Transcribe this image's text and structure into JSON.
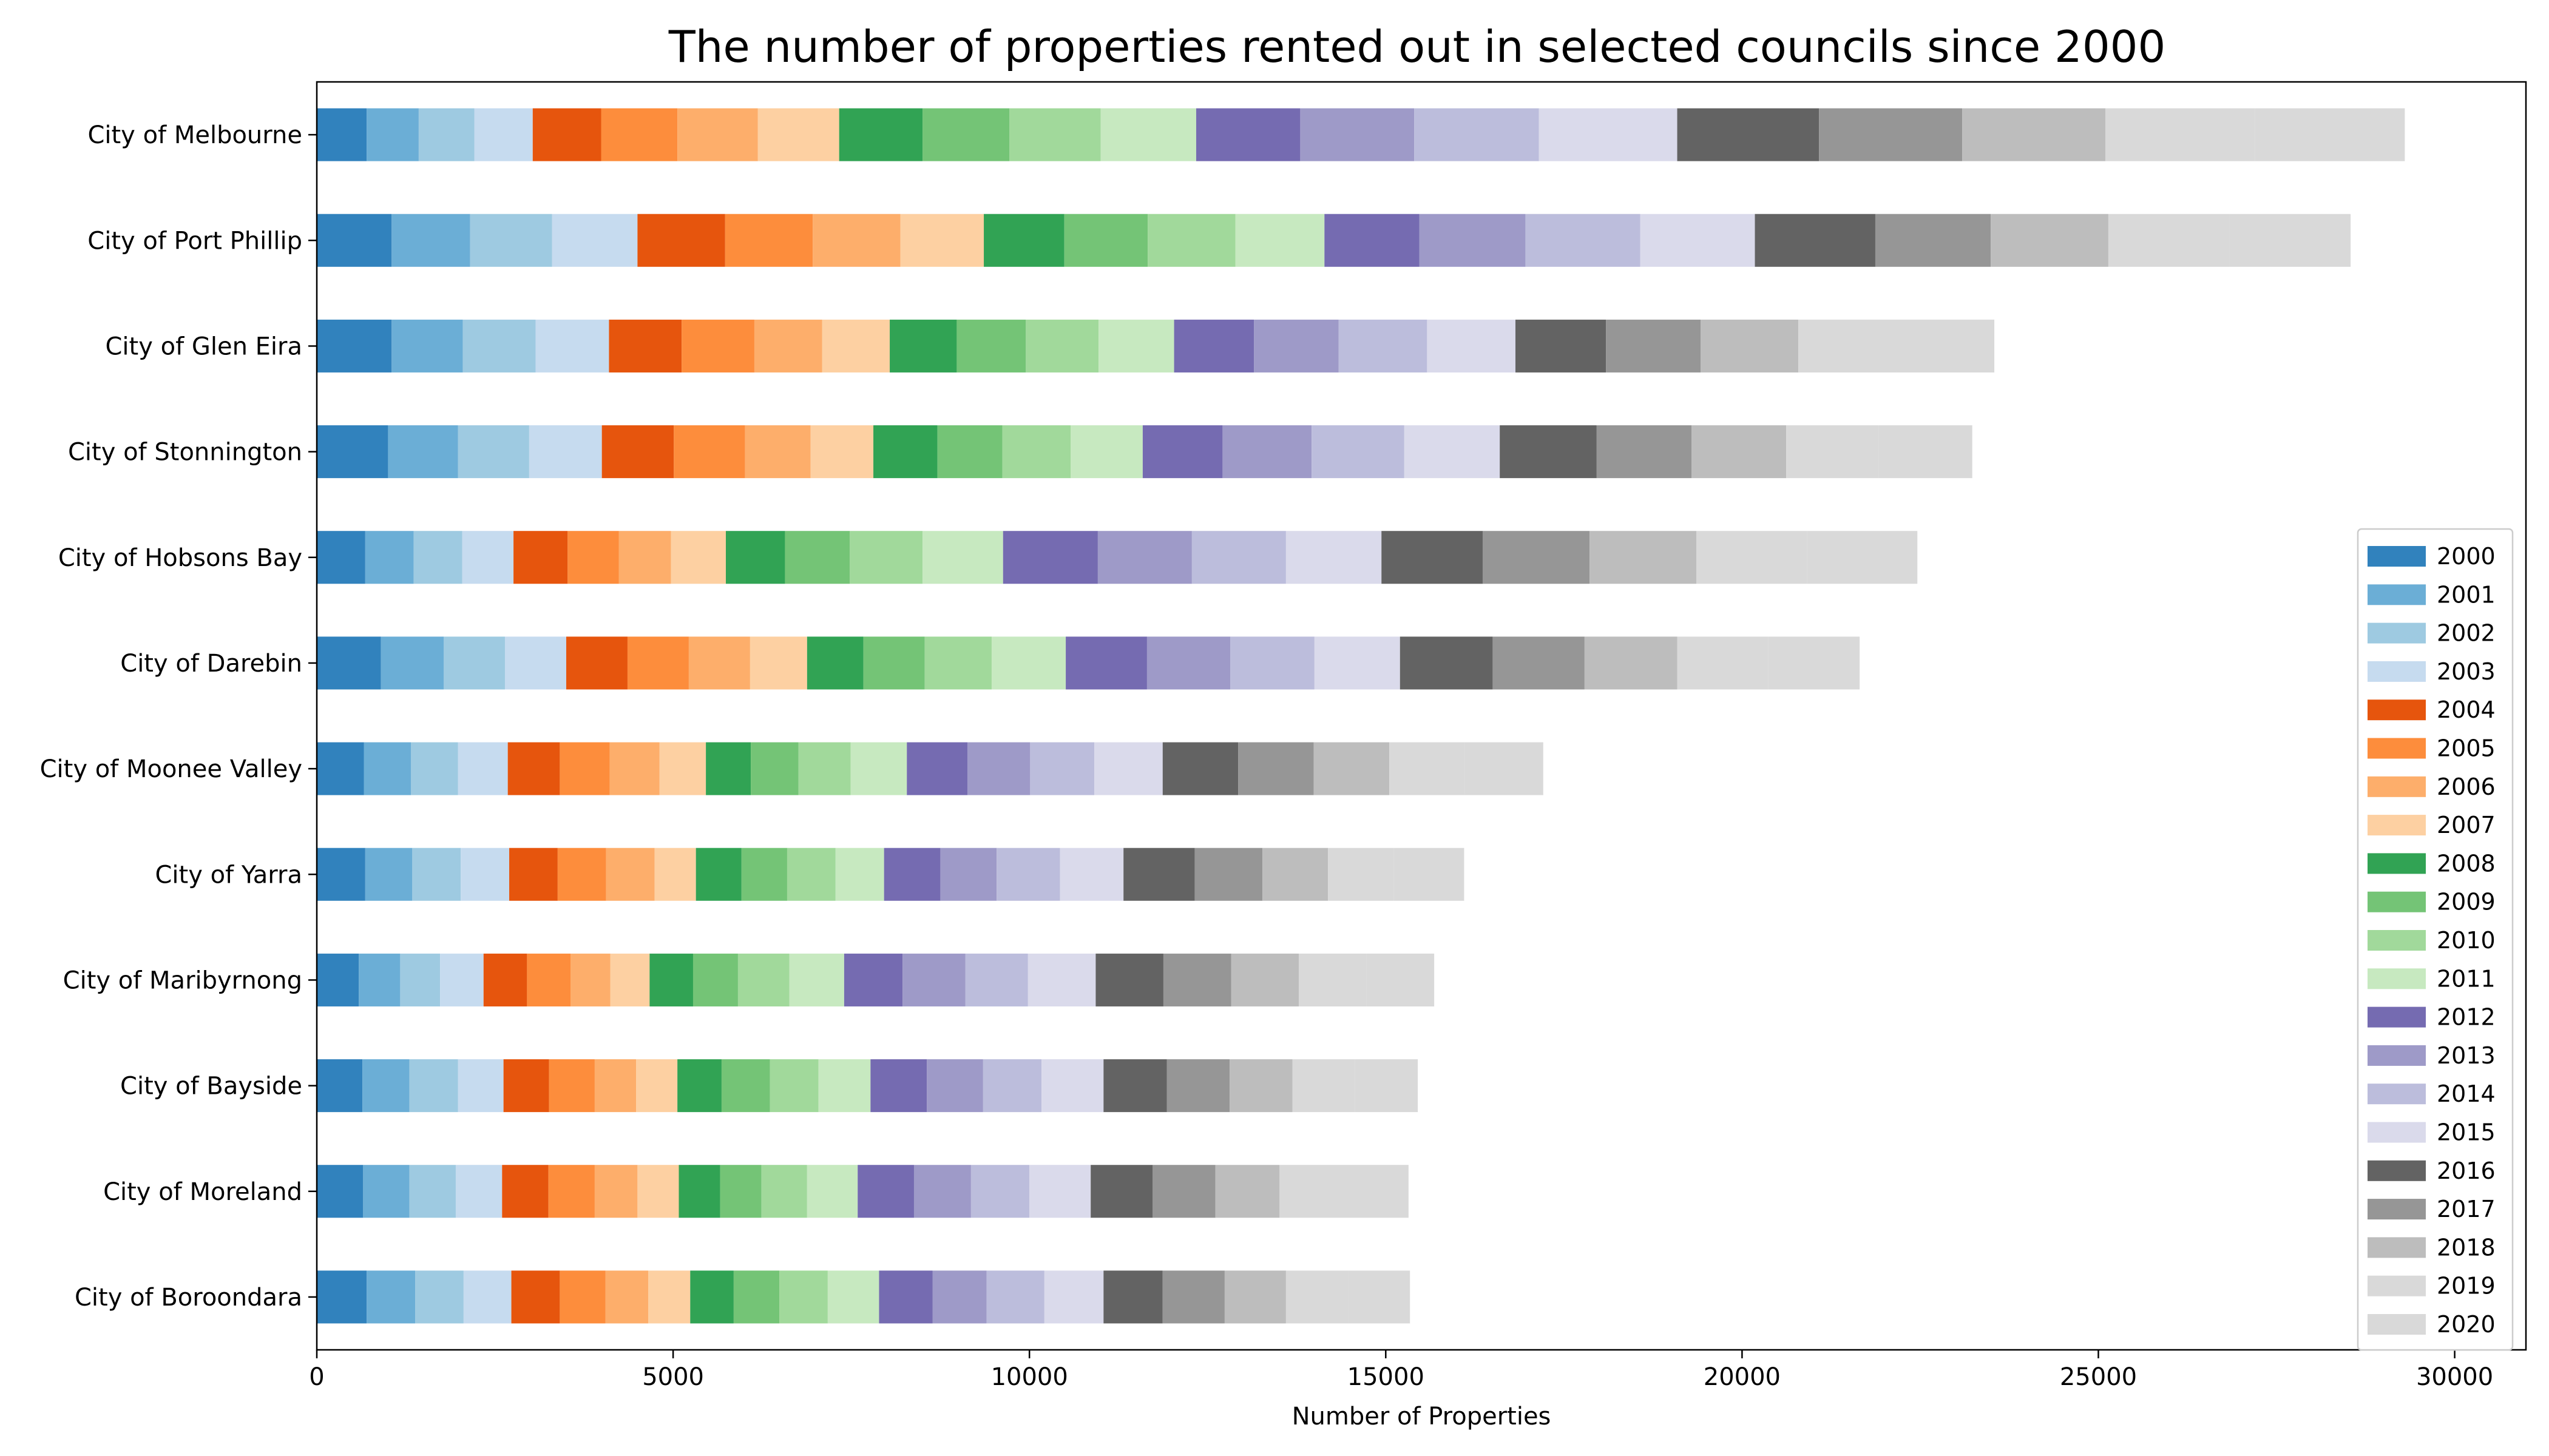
{
  "chart_data": {
    "type": "bar",
    "orientation": "horizontal",
    "stacked": true,
    "title": "The number of properties rented out in selected councils since 2000",
    "xlabel": "Number of Properties",
    "ylabel": "",
    "xlim": [
      0,
      31000
    ],
    "xticks": [
      0,
      5000,
      10000,
      15000,
      20000,
      25000,
      30000
    ],
    "grid": false,
    "legend_position": "right",
    "categories": [
      "City of Melbourne",
      "City of Port Phillip",
      "City of Glen Eira",
      "City of Stonnington",
      "City of Hobsons Bay",
      "City of Darebin",
      "City of Moonee Valley",
      "City of Yarra",
      "City of Maribyrnong",
      "City of Bayside",
      "City of Moreland",
      "City of Boroondara"
    ],
    "series": [
      {
        "name": "2000",
        "color": "#3182bd",
        "values": [
          700,
          1050,
          1050,
          1000,
          680,
          900,
          660,
          680,
          590,
          640,
          650,
          700
        ]
      },
      {
        "name": "2001",
        "color": "#6baed6",
        "values": [
          730,
          1100,
          1000,
          980,
          680,
          880,
          660,
          660,
          580,
          660,
          650,
          680
        ]
      },
      {
        "name": "2002",
        "color": "#9ecae1",
        "values": [
          780,
          1150,
          1020,
          1000,
          680,
          860,
          660,
          680,
          560,
          680,
          650,
          680
        ]
      },
      {
        "name": "2003",
        "color": "#c6dbef",
        "values": [
          820,
          1200,
          1030,
          1020,
          720,
          860,
          700,
          680,
          610,
          640,
          650,
          670
        ]
      },
      {
        "name": "2004",
        "color": "#e6550d",
        "values": [
          960,
          1230,
          1020,
          1010,
          760,
          860,
          730,
          680,
          610,
          640,
          650,
          680
        ]
      },
      {
        "name": "2005",
        "color": "#fd8d3c",
        "values": [
          1070,
          1230,
          1020,
          1000,
          720,
          860,
          700,
          680,
          610,
          640,
          650,
          640
        ]
      },
      {
        "name": "2006",
        "color": "#fdae6b",
        "values": [
          1130,
          1230,
          950,
          920,
          730,
          860,
          700,
          680,
          560,
          580,
          600,
          600
        ]
      },
      {
        "name": "2007",
        "color": "#fdd0a2",
        "values": [
          1140,
          1170,
          950,
          880,
          770,
          800,
          650,
          580,
          550,
          580,
          580,
          590
        ]
      },
      {
        "name": "2008",
        "color": "#31a354",
        "values": [
          1170,
          1130,
          940,
          900,
          830,
          790,
          630,
          640,
          610,
          620,
          580,
          610
        ]
      },
      {
        "name": "2009",
        "color": "#74c476",
        "values": [
          1220,
          1170,
          970,
          910,
          910,
          860,
          670,
          640,
          630,
          680,
          580,
          640
        ]
      },
      {
        "name": "2010",
        "color": "#a1d99b",
        "values": [
          1280,
          1230,
          1020,
          960,
          1020,
          940,
          730,
          680,
          720,
          680,
          640,
          680
        ]
      },
      {
        "name": "2011",
        "color": "#c7e9c0",
        "values": [
          1340,
          1250,
          1060,
          1010,
          1130,
          1040,
          790,
          680,
          770,
          730,
          710,
          720
        ]
      },
      {
        "name": "2012",
        "color": "#756bb1",
        "values": [
          1460,
          1330,
          1120,
          1120,
          1330,
          1140,
          850,
          790,
          820,
          790,
          790,
          750
        ]
      },
      {
        "name": "2013",
        "color": "#9e9ac8",
        "values": [
          1600,
          1490,
          1190,
          1250,
          1320,
          1170,
          880,
          790,
          880,
          790,
          800,
          760
        ]
      },
      {
        "name": "2014",
        "color": "#bcbddc",
        "values": [
          1750,
          1610,
          1240,
          1300,
          1320,
          1180,
          900,
          890,
          880,
          820,
          820,
          810
        ]
      },
      {
        "name": "2015",
        "color": "#dadaeb",
        "values": [
          1940,
          1610,
          1240,
          1340,
          1340,
          1200,
          960,
          890,
          950,
          870,
          860,
          830
        ]
      },
      {
        "name": "2016",
        "color": "#636363",
        "values": [
          1990,
          1690,
          1270,
          1360,
          1420,
          1300,
          1060,
          1000,
          950,
          890,
          870,
          830
        ]
      },
      {
        "name": "2017",
        "color": "#969696",
        "values": [
          2010,
          1620,
          1330,
          1330,
          1500,
          1290,
          1060,
          950,
          950,
          880,
          880,
          870
        ]
      },
      {
        "name": "2018",
        "color": "#bdbdbd",
        "values": [
          2010,
          1650,
          1370,
          1330,
          1500,
          1300,
          1060,
          920,
          950,
          880,
          900,
          860
        ]
      },
      {
        "name": "2019",
        "color": "#d9d9d9",
        "values": [
          2100,
          1700,
          1370,
          1300,
          1550,
          1280,
          1060,
          920,
          950,
          880,
          900,
          870
        ]
      },
      {
        "name": "2020",
        "color": "#d9d9d9",
        "values": [
          2100,
          1700,
          1380,
          1310,
          1550,
          1280,
          1100,
          990,
          950,
          880,
          910,
          870
        ]
      }
    ]
  }
}
